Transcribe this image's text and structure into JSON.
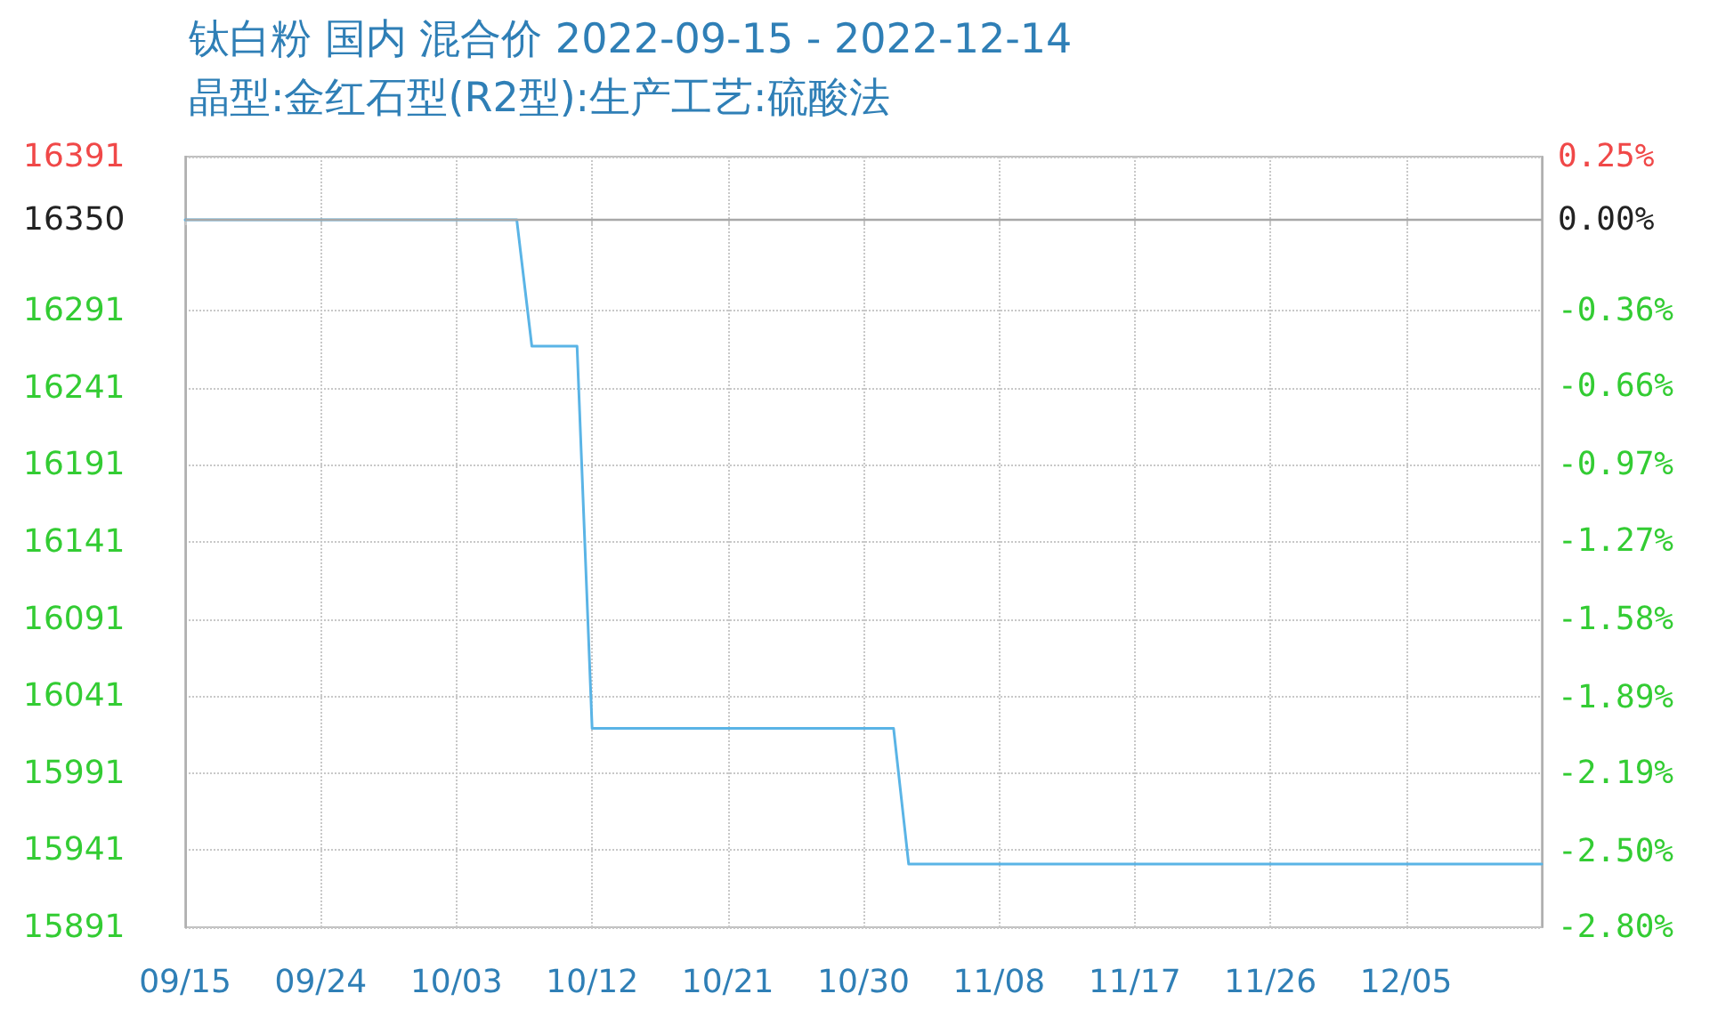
{
  "chart_data": {
    "type": "line",
    "title": "钛白粉 国内 混合价 2022-09-15 - 2022-12-14",
    "subtitle": "晶型:金红石型(R2型):生产工艺:硫酸法",
    "x": [
      "2022-09-15",
      "2022-10-07",
      "2022-10-08",
      "2022-10-11",
      "2022-10-12",
      "2022-11-01",
      "2022-11-02",
      "2022-12-14"
    ],
    "series": [
      {
        "color": "#5ab4e6",
        "values": [
          16350,
          16350,
          16268,
          16268,
          16020,
          16020,
          15932,
          15932
        ]
      }
    ],
    "xlim": [
      "2022-09-15",
      "2022-12-14"
    ],
    "xticks": [
      {
        "value": "2022-09-15",
        "label": "09/15"
      },
      {
        "value": "2022-09-24",
        "label": "09/24"
      },
      {
        "value": "2022-10-03",
        "label": "10/03"
      },
      {
        "value": "2022-10-12",
        "label": "10/12"
      },
      {
        "value": "2022-10-21",
        "label": "10/21"
      },
      {
        "value": "2022-10-30",
        "label": "10/30"
      },
      {
        "value": "2022-11-08",
        "label": "11/08"
      },
      {
        "value": "2022-11-17",
        "label": "11/17"
      },
      {
        "value": "2022-11-26",
        "label": "11/26"
      },
      {
        "value": "2022-12-05",
        "label": "12/05"
      }
    ],
    "ylim": [
      15891,
      16391
    ],
    "yticks": [
      15891,
      15941,
      15991,
      16041,
      16091,
      16141,
      16191,
      16241,
      16291,
      16350,
      16391
    ],
    "y2lim": [
      -2.8,
      0.25
    ],
    "y2ticks": [
      {
        "value": -2.8,
        "label": "-2.80%"
      },
      {
        "value": -2.5,
        "label": "-2.50%"
      },
      {
        "value": -2.19,
        "label": "-2.19%"
      },
      {
        "value": -1.89,
        "label": "-1.89%"
      },
      {
        "value": -1.58,
        "label": "-1.58%"
      },
      {
        "value": -1.27,
        "label": "-1.27%"
      },
      {
        "value": -0.97,
        "label": "-0.97%"
      },
      {
        "value": -0.66,
        "label": "-0.66%"
      },
      {
        "value": -0.36,
        "label": "-0.36%"
      },
      {
        "value": 0,
        "label": "0.00%"
      },
      {
        "value": 0.25,
        "label": "0.25%"
      }
    ],
    "ref_lines": [
      {
        "axis": "y",
        "value": 16350,
        "color": "#a8a8a8"
      }
    ],
    "grid": true,
    "marker": "none"
  }
}
